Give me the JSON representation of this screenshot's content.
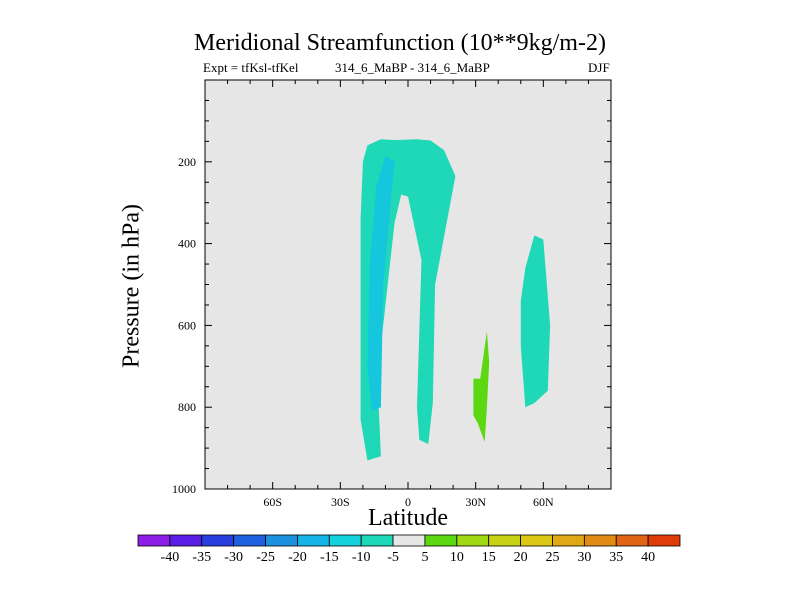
{
  "chart_data": {
    "type": "contour",
    "title": "Meridional Streamfunction (10**9kg/m-2)",
    "subtitle_left": "Expt = tfKsl-tfKel",
    "subtitle_center": "314_6_MaBP - 314_6_MaBP",
    "subtitle_right": "DJF",
    "xlabel": "Latitude",
    "ylabel": "Pressure (in hPa)",
    "xlim": [
      -90,
      90
    ],
    "ylim": [
      1000,
      0
    ],
    "xticks": [
      {
        "value": -60,
        "label": "60S"
      },
      {
        "value": -30,
        "label": "30S"
      },
      {
        "value": 0,
        "label": "0"
      },
      {
        "value": 30,
        "label": "30N"
      },
      {
        "value": 60,
        "label": "60N"
      }
    ],
    "yticks": [
      200,
      400,
      600,
      800,
      1000
    ],
    "background_color": "#e6e6e6",
    "regions": [
      {
        "name": "southern-cell",
        "level": -10,
        "color": "#1ed8b8",
        "points": [
          [
            -21,
            830
          ],
          [
            -21,
            340
          ],
          [
            -20,
            200
          ],
          [
            -18,
            160
          ],
          [
            -12,
            145
          ],
          [
            -6,
            147
          ],
          [
            4,
            145
          ],
          [
            10,
            148
          ],
          [
            16,
            172
          ],
          [
            21,
            235
          ],
          [
            12,
            500
          ],
          [
            11,
            790
          ],
          [
            9,
            890
          ],
          [
            5,
            880
          ],
          [
            4,
            800
          ],
          [
            6,
            440
          ],
          [
            0,
            285
          ],
          [
            -3,
            280
          ],
          [
            -6,
            350
          ],
          [
            -12,
            650
          ],
          [
            -13,
            800
          ],
          [
            -12,
            920
          ],
          [
            -18,
            930
          ]
        ]
      },
      {
        "name": "southern-cell-core",
        "level": -15,
        "color": "#15c6dc",
        "points": [
          [
            -18,
            700
          ],
          [
            -17,
            450
          ],
          [
            -14,
            260
          ],
          [
            -10,
            185
          ],
          [
            -6,
            200
          ],
          [
            -7,
            260
          ],
          [
            -11,
            500
          ],
          [
            -12,
            800
          ],
          [
            -16,
            810
          ]
        ]
      },
      {
        "name": "northern-cell",
        "level": -10,
        "color": "#1ed8b8",
        "points": [
          [
            52,
            800
          ],
          [
            50,
            650
          ],
          [
            50,
            540
          ],
          [
            52,
            460
          ],
          [
            56,
            380
          ],
          [
            60,
            390
          ],
          [
            63,
            600
          ],
          [
            62,
            760
          ],
          [
            56,
            790
          ]
        ]
      },
      {
        "name": "positive-cell",
        "level": 10,
        "color": "#5cd813",
        "points": [
          [
            29,
            730
          ],
          [
            32,
            730
          ],
          [
            35,
            615
          ],
          [
            36,
            690
          ],
          [
            35,
            800
          ],
          [
            34,
            885
          ],
          [
            31,
            840
          ],
          [
            29,
            820
          ]
        ]
      }
    ],
    "colorbar": {
      "levels": [
        -40,
        -35,
        -30,
        -25,
        -20,
        -15,
        -10,
        -5,
        5,
        10,
        15,
        20,
        25,
        30,
        35,
        40
      ],
      "colors": [
        "#8c1ee6",
        "#5a1ee6",
        "#2840e0",
        "#1e60e0",
        "#1e90e0",
        "#14b4e6",
        "#14d2dc",
        "#1ed8b8",
        "#e6e6e6",
        "#5cd813",
        "#a0d814",
        "#c8d214",
        "#dcc814",
        "#e0a814",
        "#e08c14",
        "#e06414",
        "#e03c0a"
      ]
    }
  }
}
